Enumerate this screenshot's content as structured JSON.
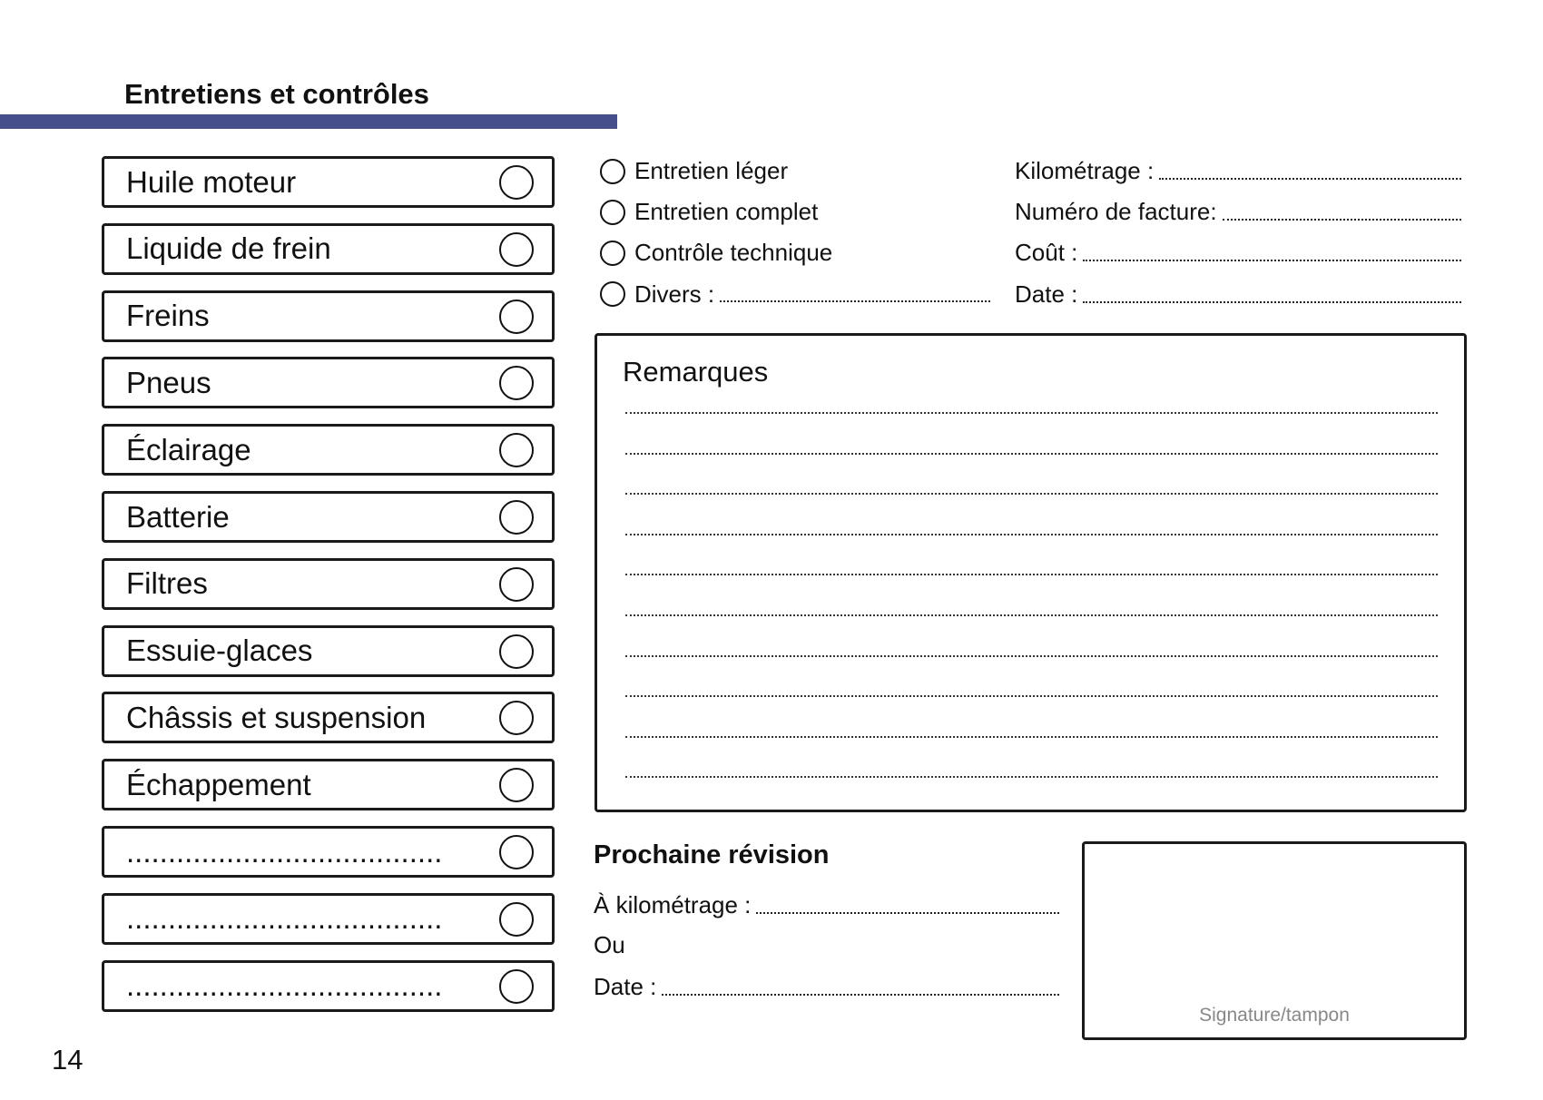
{
  "header": {
    "title": "Entretiens et contrôles",
    "accent_color": "#464e8c"
  },
  "checklist": [
    {
      "label": "Huile moteur"
    },
    {
      "label": "Liquide de frein"
    },
    {
      "label": "Freins"
    },
    {
      "label": "Pneus"
    },
    {
      "label": "Éclairage"
    },
    {
      "label": "Batterie"
    },
    {
      "label": "Filtres"
    },
    {
      "label": "Essuie-glaces"
    },
    {
      "label": "Châssis et suspension"
    },
    {
      "label": "Échappement"
    },
    {
      "label": "......................................"
    },
    {
      "label": "......................................"
    },
    {
      "label": "......................................"
    }
  ],
  "service_type": [
    {
      "label": "Entretien léger"
    },
    {
      "label": "Entretien complet"
    },
    {
      "label": "Contrôle technique"
    },
    {
      "label": "Divers :"
    }
  ],
  "fields": [
    {
      "label": "Kilométrage :"
    },
    {
      "label": "Numéro de facture:"
    },
    {
      "label": "Coût :"
    },
    {
      "label": "Date :"
    }
  ],
  "remarks": {
    "title": "Remarques"
  },
  "next_revision": {
    "title": "Prochaine révision",
    "km_label": "À kilométrage :",
    "or_label": "Ou",
    "date_label": "Date :"
  },
  "signature": {
    "label": "Signature/tampon"
  },
  "page_number": "14"
}
